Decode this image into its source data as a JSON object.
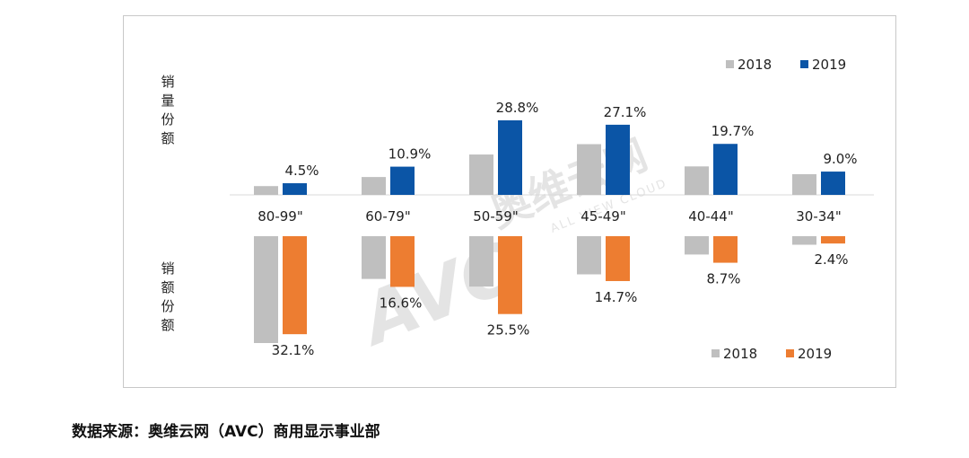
{
  "source_note": "数据来源：奥维云网（AVC）商用显示事业部",
  "watermark": {
    "brand": "AVC",
    "cn": "奥维云网",
    "en": "ALL VIEW CLOUD"
  },
  "colors": {
    "s2018": "#bfbfbf",
    "s2019_volume": "#0b55a6",
    "s2019_revenue": "#ed7d31",
    "axis": "#d9d9d9",
    "watermark": "#cfcfcf"
  },
  "chart_data": [
    {
      "type": "bar",
      "title": "",
      "ylabel": "销量份额",
      "categories": [
        "80-99\"",
        "60-79\"",
        "50-59\"",
        "45-49\"",
        "40-44\"",
        "30-34\""
      ],
      "ylim": [
        0,
        30
      ],
      "legend": "top-right",
      "series": [
        {
          "name": "2018",
          "values": [
            3.4,
            6.9,
            15.6,
            19.6,
            11.0,
            8.0
          ]
        },
        {
          "name": "2019",
          "values": [
            4.5,
            10.9,
            28.8,
            27.1,
            19.7,
            9.0
          ],
          "data_labels": [
            "4.5%",
            "10.9%",
            "28.8%",
            "27.1%",
            "19.7%",
            "9.0%"
          ]
        }
      ]
    },
    {
      "type": "bar",
      "title": "",
      "ylabel": "销额份额",
      "categories": [
        "80-99\"",
        "60-79\"",
        "50-59\"",
        "45-49\"",
        "40-44\"",
        "30-34\""
      ],
      "ylim": [
        0,
        35
      ],
      "orientation": "downward",
      "legend": "bottom-right",
      "series": [
        {
          "name": "2018",
          "values": [
            35.0,
            14.0,
            16.5,
            12.5,
            6.0,
            2.8
          ]
        },
        {
          "name": "2019",
          "values": [
            32.1,
            16.6,
            25.5,
            14.7,
            8.7,
            2.4
          ],
          "data_labels": [
            "32.1%",
            "16.6%",
            "25.5%",
            "14.7%",
            "8.7%",
            "2.4%"
          ]
        }
      ]
    }
  ]
}
